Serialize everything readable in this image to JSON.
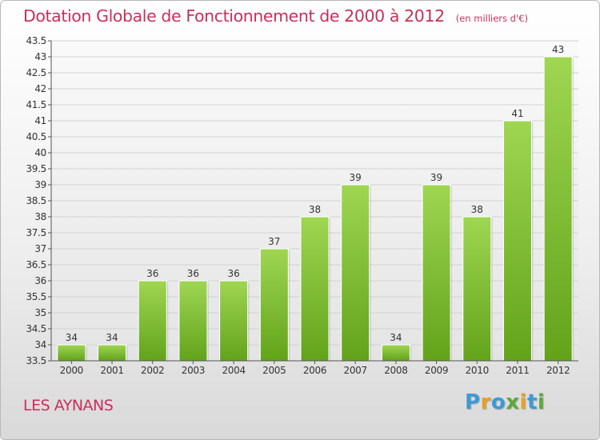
{
  "title": "Dotation Globale de Fonctionnement de 2000 à 2012",
  "unit": "(en milliers d'€)",
  "commune": "LES AYNANS",
  "logo": {
    "letters": [
      "P",
      "r",
      "o",
      "x",
      "i",
      "t",
      "i"
    ],
    "colors": [
      "#3a9ad9",
      "#e8a020",
      "#3a9ad9",
      "#5aaa3a",
      "#e8a020",
      "#3a9ad9",
      "#5aaa3a"
    ]
  },
  "chart_data": {
    "type": "bar",
    "categories": [
      "2000",
      "2001",
      "2002",
      "2003",
      "2004",
      "2005",
      "2006",
      "2007",
      "2008",
      "2009",
      "2010",
      "2011",
      "2012"
    ],
    "values": [
      34,
      34,
      36,
      36,
      36,
      37,
      38,
      39,
      34,
      39,
      38,
      41,
      43
    ],
    "data_labels": [
      "34",
      "34",
      "36",
      "36",
      "36",
      "37",
      "38",
      "39",
      "34",
      "39",
      "38",
      "41",
      "43"
    ],
    "title": "Dotation Globale de Fonctionnement de 2000 à 2012",
    "ylim": [
      33.5,
      43.5
    ],
    "yticks": [
      "33.5",
      "34",
      "34.5",
      "35",
      "35.5",
      "36",
      "36.5",
      "37",
      "37.5",
      "38",
      "38.5",
      "39",
      "39.5",
      "40",
      "40.5",
      "41",
      "41.5",
      "42",
      "42.5",
      "43",
      "43.5"
    ],
    "grid": true,
    "bar_color": "#8cc63f"
  }
}
